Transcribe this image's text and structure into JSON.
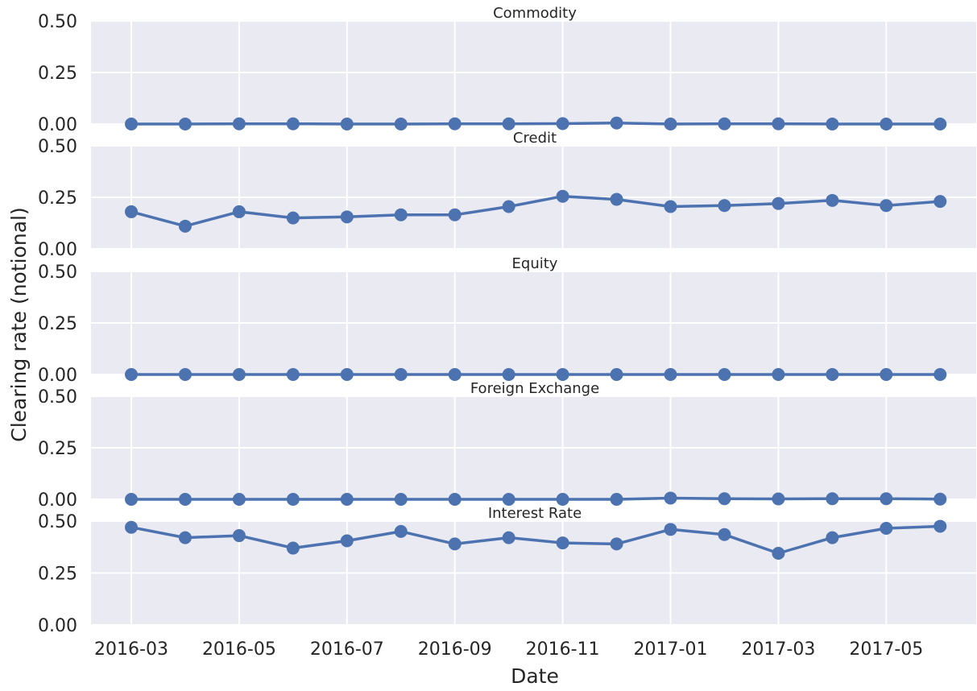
{
  "chart_data": {
    "type": "line",
    "xlabel": "Date",
    "ylabel": "Clearing rate (notional)",
    "x": [
      "2016-03",
      "2016-04",
      "2016-05",
      "2016-06",
      "2016-07",
      "2016-08",
      "2016-09",
      "2016-10",
      "2016-11",
      "2016-12",
      "2017-01",
      "2017-02",
      "2017-03",
      "2017-04",
      "2017-05",
      "2017-06"
    ],
    "x_ticks": [
      "2016-03",
      "2016-05",
      "2016-07",
      "2016-09",
      "2016-11",
      "2017-01",
      "2017-03",
      "2017-05"
    ],
    "ylim": [
      0,
      0.5
    ],
    "y_ticks": [
      "0.00",
      "0.25",
      "0.50"
    ],
    "grid": true,
    "line_color": "#4c72b0",
    "background_color": "#eaeaf2",
    "panels": [
      {
        "title": "Commodity",
        "values": [
          0.0,
          0.0,
          0.001,
          0.001,
          0.0,
          0.0,
          0.001,
          0.001,
          0.002,
          0.005,
          0.0,
          0.001,
          0.001,
          0.0,
          0.0,
          0.0
        ]
      },
      {
        "title": "Credit",
        "values": [
          0.18,
          0.11,
          0.18,
          0.15,
          0.155,
          0.165,
          0.165,
          0.205,
          0.255,
          0.24,
          0.205,
          0.21,
          0.22,
          0.235,
          0.21,
          0.23
        ]
      },
      {
        "title": "Equity",
        "values": [
          0,
          0,
          0,
          0,
          0,
          0,
          0,
          0,
          0,
          0,
          0,
          0,
          0,
          0,
          0,
          0
        ]
      },
      {
        "title": "Foreign Exchange",
        "values": [
          0.0,
          0.0,
          0.0,
          0.0,
          0.0,
          0.0,
          0.0,
          0.0,
          0.0,
          0.0,
          0.006,
          0.003,
          0.002,
          0.003,
          0.003,
          0.001
        ]
      },
      {
        "title": "Interest Rate",
        "values": [
          0.47,
          0.42,
          0.43,
          0.37,
          0.405,
          0.45,
          0.39,
          0.42,
          0.395,
          0.39,
          0.46,
          0.435,
          0.345,
          0.42,
          0.465,
          0.475
        ]
      }
    ]
  }
}
